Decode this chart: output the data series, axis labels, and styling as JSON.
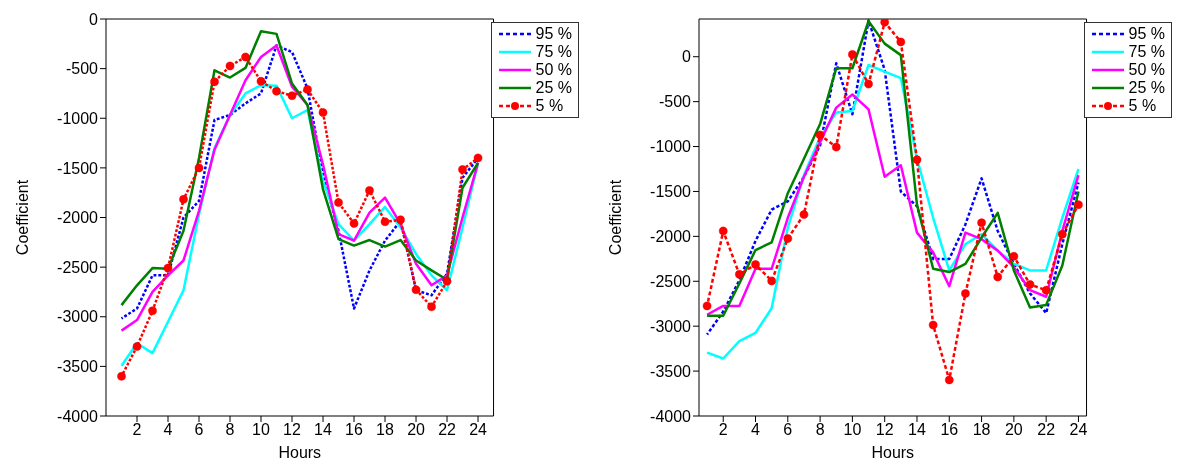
{
  "chart_data": [
    {
      "type": "line",
      "xlabel": "Hours",
      "ylabel": "Coefficient",
      "x": [
        1,
        2,
        3,
        4,
        5,
        6,
        7,
        8,
        9,
        10,
        11,
        12,
        13,
        14,
        15,
        16,
        17,
        18,
        19,
        20,
        21,
        22,
        23,
        24
      ],
      "xlim": [
        0,
        25
      ],
      "xticks": [
        2,
        4,
        6,
        8,
        10,
        12,
        14,
        16,
        18,
        20,
        22,
        24
      ],
      "ylim": [
        -4000,
        0
      ],
      "yticks": [
        -4000,
        -3500,
        -3000,
        -2500,
        -2000,
        -1500,
        -1000,
        -500,
        0
      ],
      "legend": "top right",
      "series": [
        {
          "name": "95 %",
          "color": "#0000ff",
          "line_style": "dashed",
          "marker": "none",
          "values": [
            -3017,
            -2917,
            -2583,
            -2583,
            -2000,
            -1833,
            -1017,
            -967,
            -850,
            -750,
            -267,
            -333,
            -700,
            -1567,
            -2133,
            -2917,
            -2533,
            -2233,
            -2033,
            -2733,
            -2783,
            -2567,
            -1600,
            -1400
          ]
        },
        {
          "name": "75 %",
          "color": "#00ffff",
          "line_style": "solid",
          "marker": "none",
          "values": [
            -3493,
            -3267,
            -3367,
            -3050,
            -2733,
            -1967,
            -1300,
            -967,
            -750,
            -667,
            -673,
            -1000,
            -917,
            -1633,
            -2067,
            -2233,
            -2067,
            -1893,
            -2100,
            -2367,
            -2583,
            -2733,
            -2100,
            -1450
          ]
        },
        {
          "name": "50 %",
          "color": "#ff00ff",
          "line_style": "solid",
          "marker": "none",
          "values": [
            -3140,
            -3033,
            -2750,
            -2583,
            -2433,
            -1933,
            -1317,
            -967,
            -617,
            -383,
            -267,
            -683,
            -867,
            -1467,
            -2167,
            -2233,
            -1950,
            -1800,
            -2067,
            -2467,
            -2683,
            -2583,
            -2000,
            -1450
          ]
        },
        {
          "name": "25 %",
          "color": "#008000",
          "line_style": "solid",
          "marker": "none",
          "values": [
            -2883,
            -2683,
            -2510,
            -2517,
            -2133,
            -1400,
            -517,
            -590,
            -493,
            -123,
            -150,
            -650,
            -867,
            -1717,
            -2217,
            -2283,
            -2227,
            -2293,
            -2227,
            -2433,
            -2533,
            -2627,
            -1700,
            -1450
          ]
        },
        {
          "name": "5 %",
          "color": "#ff0000",
          "line_style": "dashed",
          "marker": "circle",
          "values": [
            -3600,
            -3300,
            -2940,
            -2510,
            -1817,
            -1500,
            -633,
            -473,
            -383,
            -627,
            -727,
            -773,
            -710,
            -943,
            -1850,
            -2060,
            -1727,
            -2043,
            -2023,
            -2727,
            -2900,
            -2643,
            -1517,
            -1400
          ]
        }
      ]
    },
    {
      "type": "line",
      "xlabel": "Hours",
      "ylabel": "Coefficient",
      "x": [
        1,
        2,
        3,
        4,
        5,
        6,
        7,
        8,
        9,
        10,
        11,
        12,
        13,
        14,
        15,
        16,
        17,
        18,
        19,
        20,
        21,
        22,
        23,
        24
      ],
      "xlim": [
        0.5,
        24.5
      ],
      "xticks": [
        2,
        4,
        6,
        8,
        10,
        12,
        14,
        16,
        18,
        20,
        22,
        24
      ],
      "ylim": [
        -4000,
        420
      ],
      "yticks": [
        -4000,
        -3500,
        -3000,
        -2500,
        -2000,
        -1500,
        -1000,
        -500,
        0
      ],
      "legend": "top right",
      "series": [
        {
          "name": "95 %",
          "color": "#0000ff",
          "line_style": "dashed",
          "marker": "none",
          "values": [
            -3093,
            -2837,
            -2489,
            -2050,
            -1702,
            -1610,
            -1336,
            -988,
            -73,
            -641,
            403,
            -146,
            -1501,
            -1665,
            -2251,
            -2251,
            -1867,
            -1354,
            -1940,
            -2306,
            -2635,
            -2855,
            -2086,
            -1400
          ]
        },
        {
          "name": "75 %",
          "color": "#00ffff",
          "line_style": "solid",
          "marker": "none",
          "values": [
            -3294,
            -3360,
            -3166,
            -3074,
            -2800,
            -1903,
            -1318,
            -897,
            -622,
            -604,
            -92,
            -165,
            -238,
            -1135,
            -1793,
            -2379,
            -2086,
            -1976,
            -2159,
            -2306,
            -2379,
            -2379,
            -1793,
            -1250
          ]
        },
        {
          "name": "50 %",
          "color": "#ff00ff",
          "line_style": "solid",
          "marker": "none",
          "values": [
            -2873,
            -2774,
            -2774,
            -2361,
            -2361,
            -1793,
            -1336,
            -952,
            -567,
            -421,
            -586,
            -1336,
            -1208,
            -1958,
            -2178,
            -2555,
            -1958,
            -2031,
            -2159,
            -2343,
            -2599,
            -2672,
            -1940,
            -1318
          ]
        },
        {
          "name": "25 %",
          "color": "#008000",
          "line_style": "solid",
          "marker": "none",
          "values": [
            -2884,
            -2884,
            -2525,
            -2152,
            -2068,
            -1519,
            -1135,
            -750,
            -128,
            -128,
            395,
            146,
            18,
            -1647,
            -2361,
            -2397,
            -2306,
            -2013,
            -1739,
            -2379,
            -2793,
            -2763,
            -2324,
            -1501
          ]
        },
        {
          "name": "5 %",
          "color": "#ff0000",
          "line_style": "dashed",
          "marker": "circle",
          "values": [
            -2774,
            -1940,
            -2423,
            -2313,
            -2496,
            -2024,
            -1757,
            -871,
            -1006,
            26,
            -304,
            384,
            165,
            -1146,
            -2987,
            -3598,
            -2635,
            -1848,
            -2452,
            -2222,
            -2536,
            -2599,
            -1976,
            -1647
          ]
        }
      ]
    }
  ]
}
